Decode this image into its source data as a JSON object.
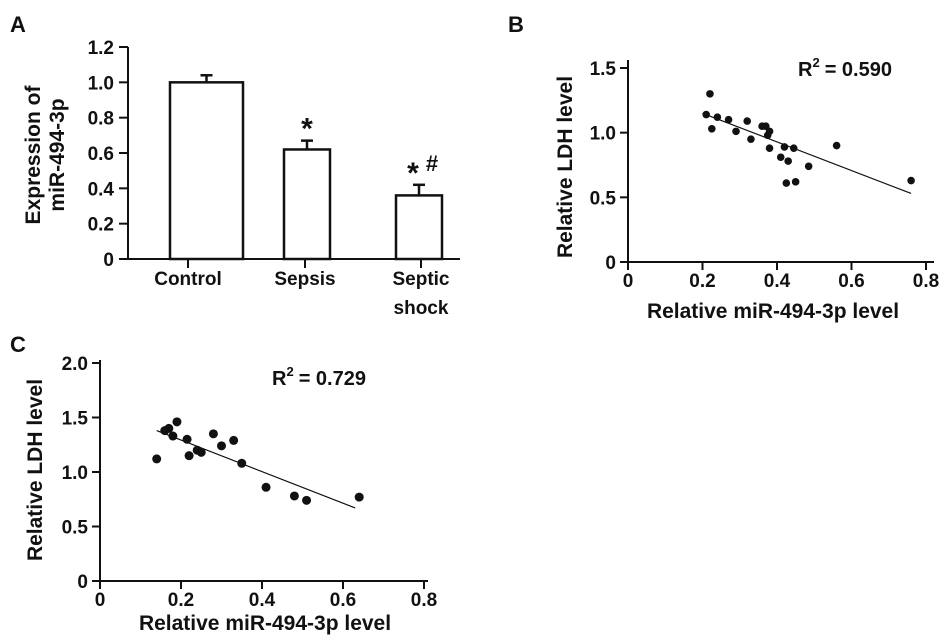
{
  "panels": {
    "a": {
      "letter": "A"
    },
    "b": {
      "letter": "B"
    },
    "c": {
      "letter": "C"
    }
  },
  "chart_data": [
    {
      "panel": "A",
      "type": "bar",
      "ylabel_line1": "Expression of",
      "ylabel_line2": "miR-494-3p",
      "xlabel": "",
      "ylim": [
        0,
        1.2
      ],
      "yticks": [
        "0",
        "0.2",
        "0.4",
        "0.6",
        "0.8",
        "1.0",
        "1.2"
      ],
      "categories": [
        {
          "line1": "Control",
          "line2": ""
        },
        {
          "line1": "Sepsis",
          "line2": ""
        },
        {
          "line1": "Septic",
          "line2": "shock"
        }
      ],
      "values": [
        1.0,
        0.62,
        0.36
      ],
      "errors": [
        0.04,
        0.05,
        0.06
      ],
      "significance": [
        {
          "star": "",
          "hash": ""
        },
        {
          "star": "*",
          "hash": ""
        },
        {
          "star": "*",
          "hash": "#"
        }
      ]
    },
    {
      "panel": "B",
      "type": "scatter",
      "xlabel": "Relative miR-494-3p level",
      "ylabel": "Relative LDH level",
      "xlim": [
        0,
        0.8
      ],
      "ylim": [
        0,
        1.5
      ],
      "xticks": [
        "0",
        "0.2",
        "0.4",
        "0.6",
        "0.8"
      ],
      "yticks": [
        "0",
        "0.5",
        "1.0",
        "1.5"
      ],
      "r2_label": "R",
      "r2_value": "= 0.590",
      "points": [
        [
          0.21,
          1.14
        ],
        [
          0.22,
          1.3
        ],
        [
          0.225,
          1.03
        ],
        [
          0.24,
          1.12
        ],
        [
          0.27,
          1.1
        ],
        [
          0.29,
          1.01
        ],
        [
          0.32,
          1.09
        ],
        [
          0.33,
          0.95
        ],
        [
          0.36,
          1.05
        ],
        [
          0.37,
          1.05
        ],
        [
          0.375,
          0.98
        ],
        [
          0.38,
          1.01
        ],
        [
          0.38,
          0.88
        ],
        [
          0.41,
          0.81
        ],
        [
          0.42,
          0.89
        ],
        [
          0.43,
          0.78
        ],
        [
          0.445,
          0.88
        ],
        [
          0.425,
          0.61
        ],
        [
          0.45,
          0.62
        ],
        [
          0.485,
          0.74
        ],
        [
          0.56,
          0.9
        ],
        [
          0.76,
          0.63
        ]
      ],
      "fit": [
        [
          0.2,
          1.15
        ],
        [
          0.76,
          0.53
        ]
      ]
    },
    {
      "panel": "C",
      "type": "scatter",
      "xlabel": "Relative miR-494-3p level",
      "ylabel": "Relative LDH level",
      "xlim": [
        0,
        0.8
      ],
      "ylim": [
        0,
        2.0
      ],
      "xticks": [
        "0",
        "0.2",
        "0.4",
        "0.6",
        "0.8"
      ],
      "yticks": [
        "0",
        "0.5",
        "1.0",
        "1.5",
        "2.0"
      ],
      "r2_label": "R",
      "r2_value": "= 0.729",
      "points": [
        [
          0.14,
          1.12
        ],
        [
          0.16,
          1.38
        ],
        [
          0.17,
          1.4
        ],
        [
          0.18,
          1.33
        ],
        [
          0.19,
          1.46
        ],
        [
          0.215,
          1.3
        ],
        [
          0.22,
          1.15
        ],
        [
          0.24,
          1.2
        ],
        [
          0.25,
          1.18
        ],
        [
          0.28,
          1.35
        ],
        [
          0.3,
          1.24
        ],
        [
          0.33,
          1.29
        ],
        [
          0.35,
          1.08
        ],
        [
          0.41,
          0.86
        ],
        [
          0.48,
          0.78
        ],
        [
          0.51,
          0.74
        ],
        [
          0.64,
          0.77
        ]
      ],
      "fit": [
        [
          0.14,
          1.38
        ],
        [
          0.63,
          0.67
        ]
      ]
    }
  ]
}
